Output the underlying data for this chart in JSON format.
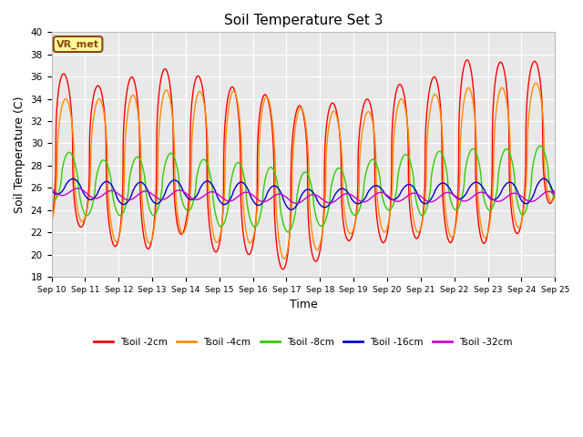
{
  "title": "Soil Temperature Set 3",
  "xlabel": "Time",
  "ylabel": "Soil Temperature (C)",
  "ylim": [
    18,
    40
  ],
  "yticks": [
    18,
    20,
    22,
    24,
    26,
    28,
    30,
    32,
    34,
    36,
    38,
    40
  ],
  "x_ticks_labels": [
    "Sep 10",
    "Sep 11",
    "Sep 12",
    "Sep 13",
    "Sep 14",
    "Sep 15",
    "Sep 16",
    "Sep 17",
    "Sep 18",
    "Sep 19",
    "Sep 20",
    "Sep 21",
    "Sep 22",
    "Sep 23",
    "Sep 24",
    "Sep 25"
  ],
  "series_colors": [
    "#FF0000",
    "#FF8C00",
    "#33CC00",
    "#0000CC",
    "#CC00CC"
  ],
  "series_labels": [
    "Tsoil -2cm",
    "Tsoil -4cm",
    "Tsoil -8cm",
    "Tsoil -16cm",
    "Tsoil -32cm"
  ],
  "fig_bg_color": "#FFFFFF",
  "plot_bg_color": "#E8E8E8",
  "grid_color": "#FFFFFF",
  "annotation_text": "VR_met",
  "annotation_bg": "#FFFF99",
  "annotation_border": "#8B4513"
}
